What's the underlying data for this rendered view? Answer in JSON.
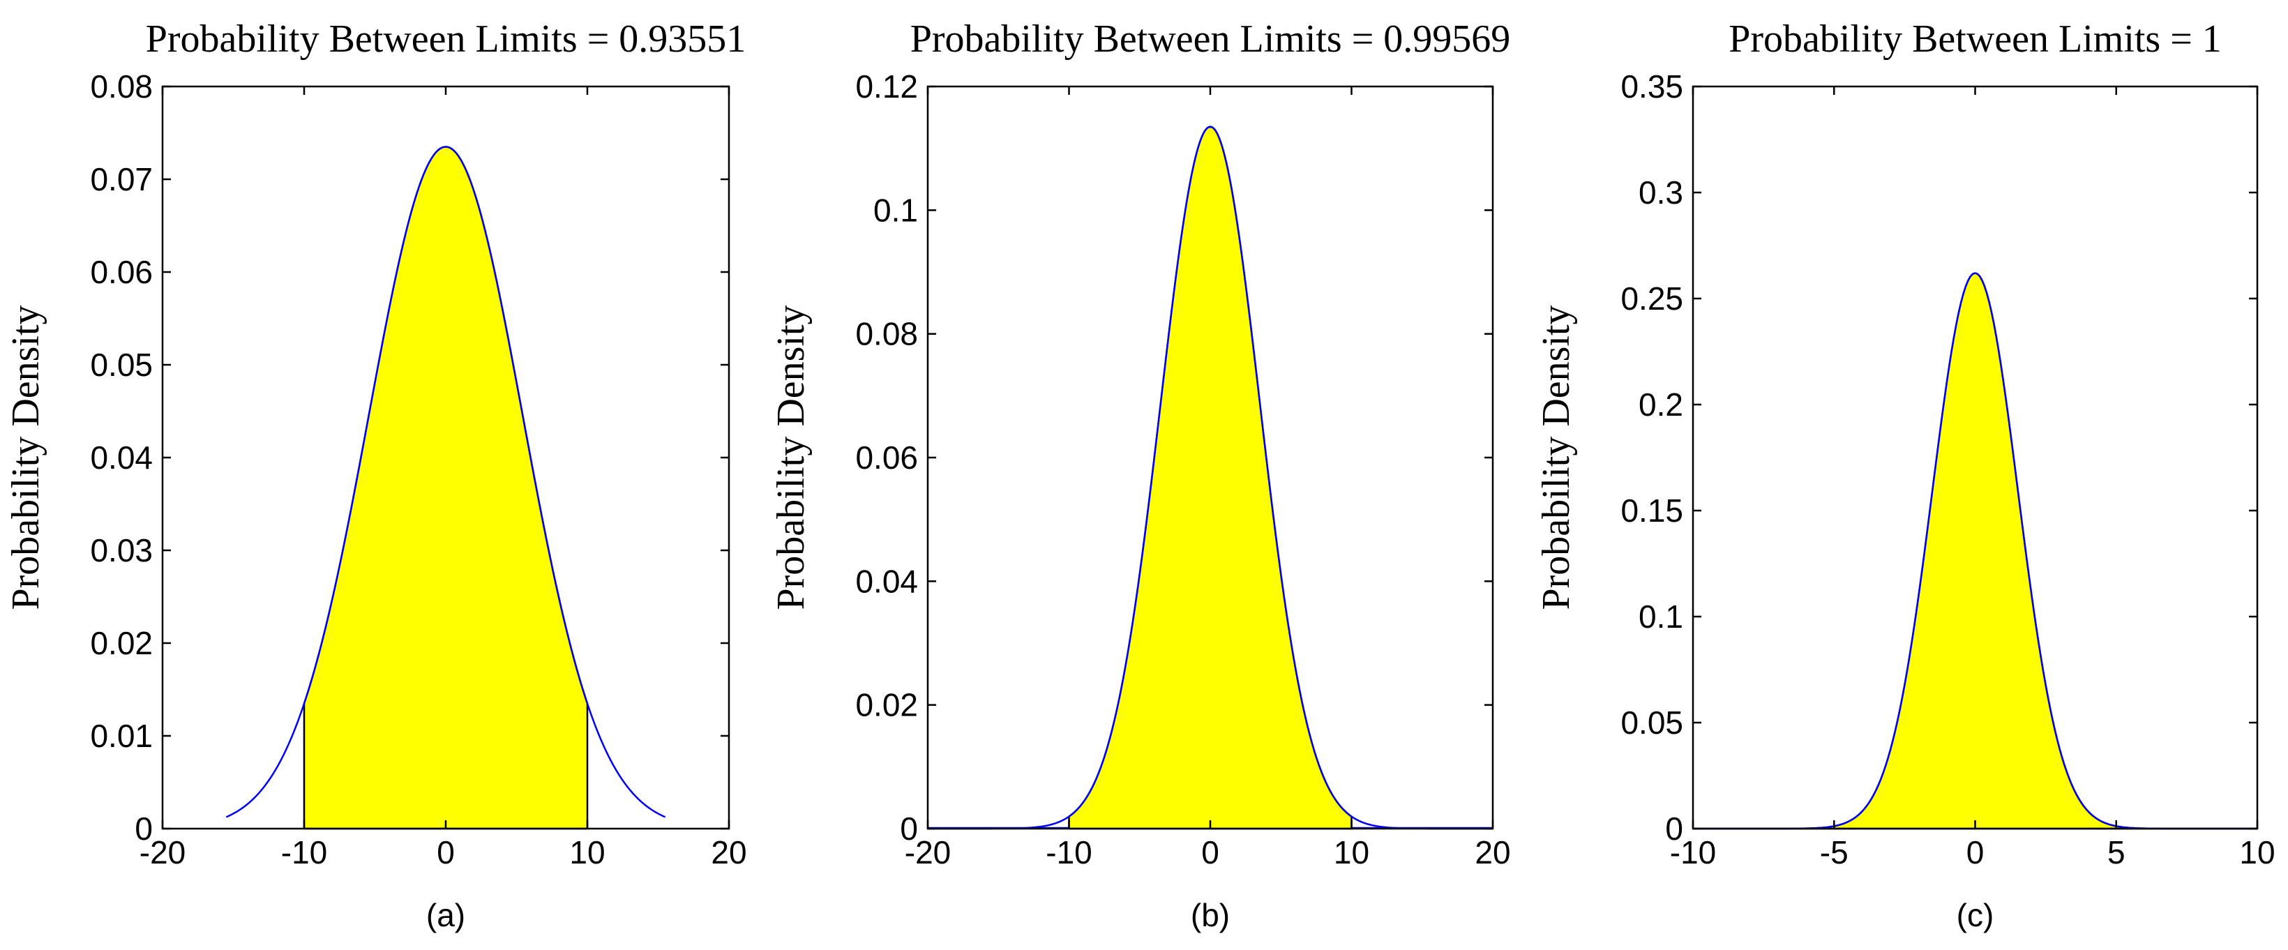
{
  "chart_data": [
    {
      "type": "area",
      "title": "Probability Between Limits = 0.93551",
      "ylabel": "Probability Density",
      "xlabel": "(a)",
      "xlim": [
        -20,
        20
      ],
      "ylim": [
        0,
        0.08
      ],
      "xticks": [
        "-20",
        "-10",
        "0",
        "10",
        "20"
      ],
      "yticks": [
        "0",
        "0.01",
        "0.02",
        "0.03",
        "0.04",
        "0.05",
        "0.06",
        "0.07",
        "0.08"
      ],
      "grid": false,
      "distribution": "gaussian",
      "peak": 0.0735,
      "sigma": 5.43,
      "curve_range": [
        -15.5,
        15.5
      ],
      "limits": [
        -10,
        10
      ],
      "curve_color": "#0000ff",
      "fill_color": "#ffff00"
    },
    {
      "type": "area",
      "title": "Probability Between Limits = 0.99569",
      "ylabel": "Probability Density",
      "xlabel": "(b)",
      "xlim": [
        -20,
        20
      ],
      "ylim": [
        0,
        0.12
      ],
      "xticks": [
        "-20",
        "-10",
        "0",
        "10",
        "20"
      ],
      "yticks": [
        "0",
        "0.02",
        "0.04",
        "0.06",
        "0.08",
        "0.1",
        "0.12"
      ],
      "grid": false,
      "distribution": "gaussian",
      "peak": 0.1135,
      "sigma": 3.51,
      "curve_range": [
        -20,
        20
      ],
      "limits": [
        -10,
        10
      ],
      "curve_color": "#0000ff",
      "fill_color": "#ffff00"
    },
    {
      "type": "area",
      "title": "Probability Between Limits = 1",
      "ylabel": "Probability Density",
      "xlabel": "(c)",
      "xlim": [
        -10,
        10
      ],
      "ylim": [
        0,
        0.35
      ],
      "xticks": [
        "-10",
        "-5",
        "0",
        "5",
        "10"
      ],
      "yticks": [
        "0",
        "0.05",
        "0.1",
        "0.15",
        "0.2",
        "0.25",
        "0.3",
        "0.35"
      ],
      "grid": false,
      "distribution": "gaussian",
      "peak": 0.262,
      "sigma": 1.52,
      "curve_range": [
        -10,
        10
      ],
      "limits": [
        -10,
        10
      ],
      "curve_color": "#0000ff",
      "fill_color": "#ffff00"
    }
  ]
}
